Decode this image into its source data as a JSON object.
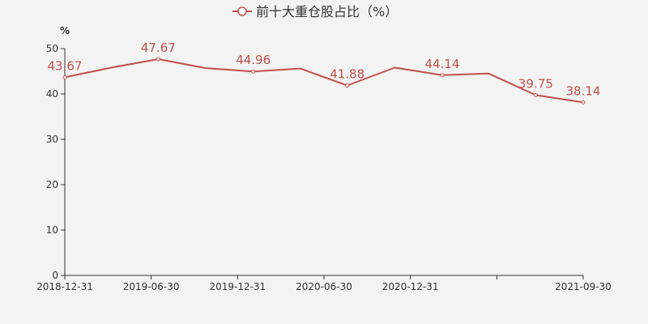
{
  "chart_data": {
    "type": "line",
    "legend": "前十大重仓股占比（%）",
    "unit": "%",
    "x_tick_labels": [
      "2018-12-31",
      "2019-06-30",
      "2019-12-31",
      "2020-06-30",
      "2020-12-31",
      "",
      "2021-09-30"
    ],
    "y_ticks": [
      0,
      10,
      20,
      30,
      40,
      50
    ],
    "ylim": [
      0,
      50
    ],
    "points": [
      {
        "x": "2018-12-31",
        "y": 43.67,
        "label": "43.67"
      },
      {
        "x": "2019-03-31",
        "y": 45.8,
        "label": ""
      },
      {
        "x": "2019-06-30",
        "y": 47.67,
        "label": "47.67"
      },
      {
        "x": "2019-09-30",
        "y": 45.7,
        "label": ""
      },
      {
        "x": "2019-12-31",
        "y": 44.96,
        "label": "44.96"
      },
      {
        "x": "2020-03-31",
        "y": 45.6,
        "label": ""
      },
      {
        "x": "2020-06-30",
        "y": 41.88,
        "label": "41.88"
      },
      {
        "x": "2020-09-30",
        "y": 45.8,
        "label": ""
      },
      {
        "x": "2020-12-31",
        "y": 44.14,
        "label": "44.14"
      },
      {
        "x": "2021-03-31",
        "y": 44.5,
        "label": ""
      },
      {
        "x": "2021-06-30",
        "y": 39.75,
        "label": "39.75"
      },
      {
        "x": "2021-09-30",
        "y": 38.14,
        "label": "38.14"
      }
    ],
    "colors": {
      "line": "#c0504d",
      "label": "#c0504d",
      "axis": "#333333",
      "background": "#f3f3f3"
    }
  }
}
